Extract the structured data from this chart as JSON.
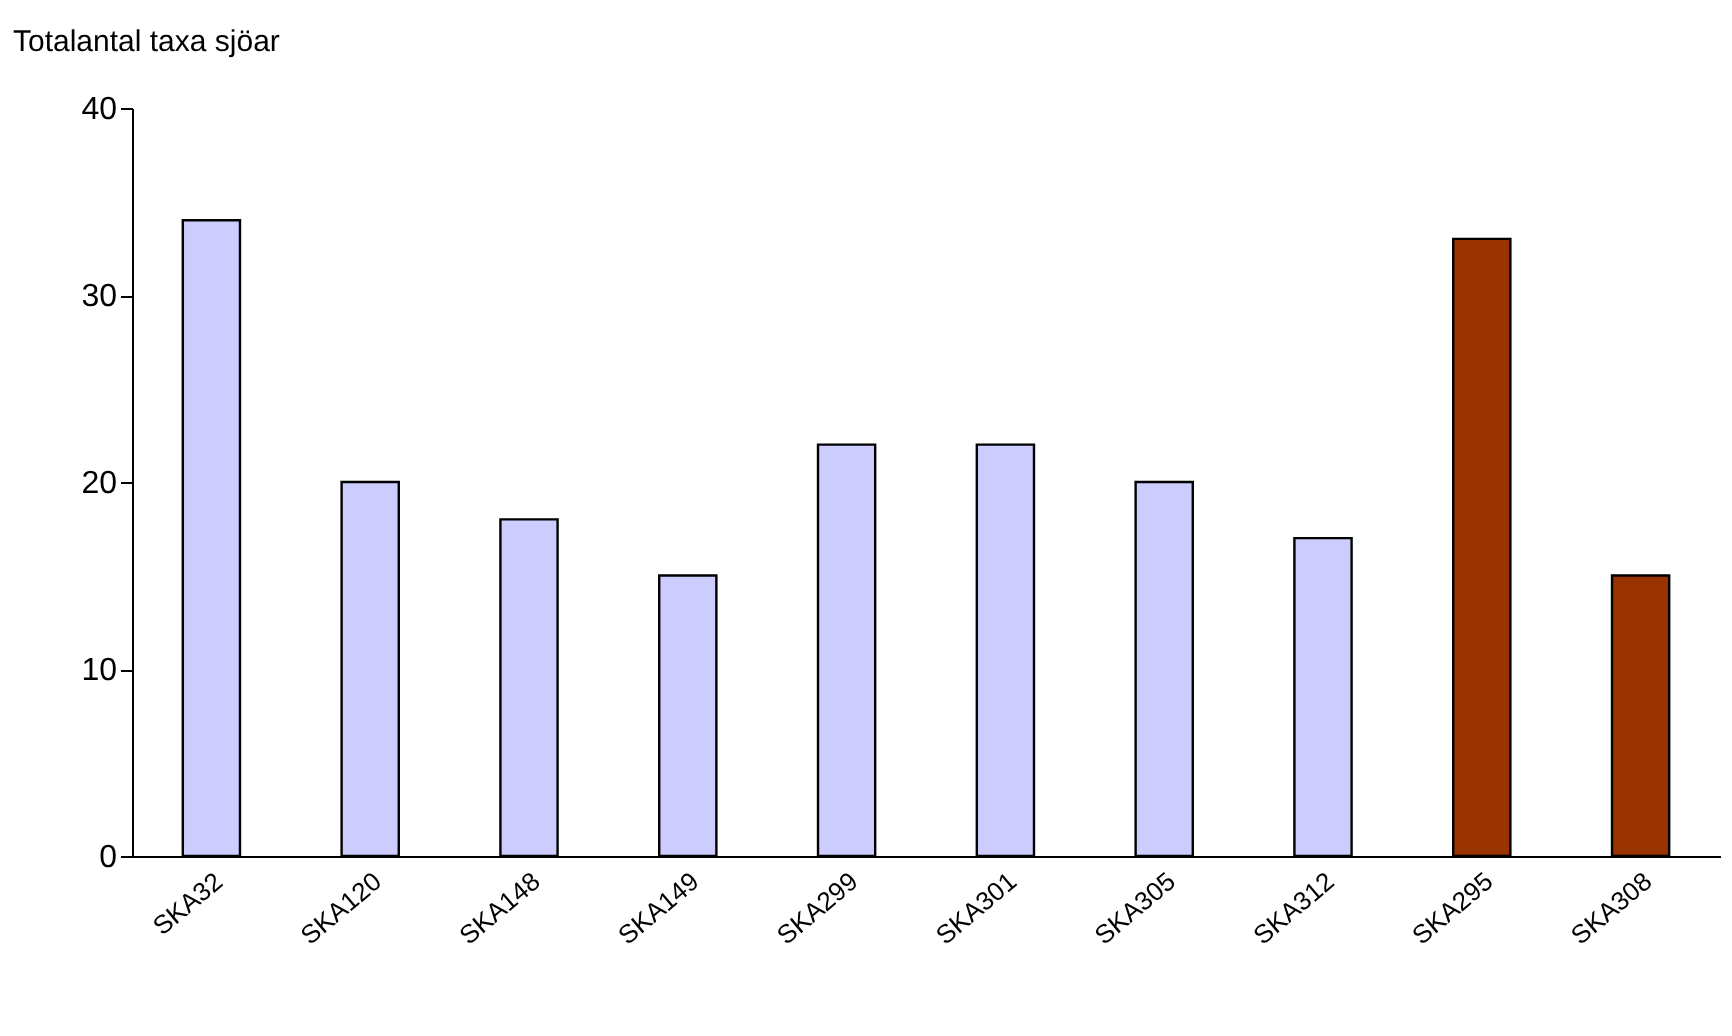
{
  "chart_data": {
    "type": "bar",
    "ylabel": "Totalantal taxa sjöar",
    "categories": [
      "SKA32",
      "SKA120",
      "SKA148",
      "SKA149",
      "SKA299",
      "SKA301",
      "SKA305",
      "SKA312",
      "SKA295",
      "SKA308"
    ],
    "values": [
      34,
      20,
      18,
      15,
      22,
      22,
      20,
      17,
      33,
      15
    ],
    "colors": [
      "#ccccff",
      "#ccccff",
      "#ccccff",
      "#ccccff",
      "#ccccff",
      "#ccccff",
      "#ccccff",
      "#ccccff",
      "#993300",
      "#993300"
    ],
    "ylim": [
      0,
      40
    ],
    "yticks": [
      0,
      10,
      20,
      30,
      40
    ],
    "grid": false
  }
}
